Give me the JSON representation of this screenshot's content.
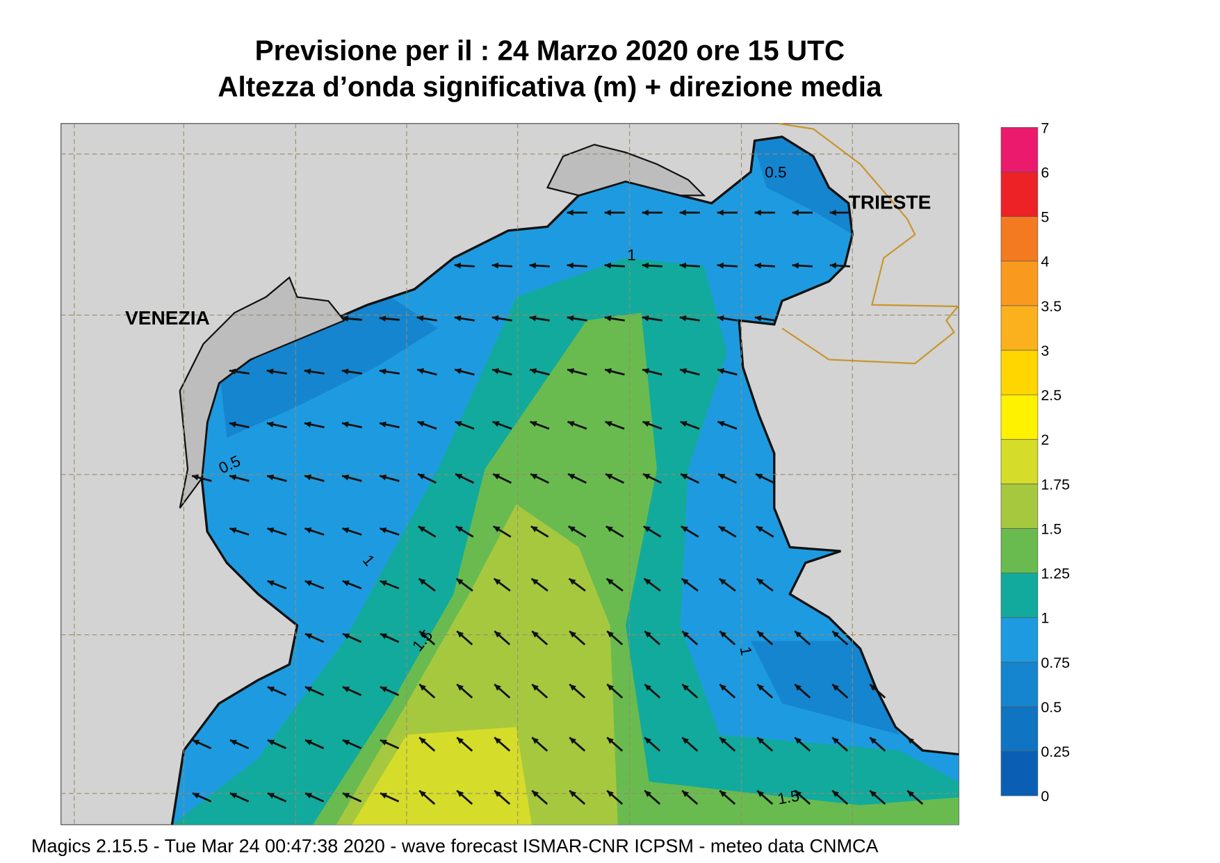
{
  "header": {
    "title": "Previsione per il  :  24   Marzo   2020   ore 15 UTC",
    "subtitle": "Altezza d’onda significativa (m) + direzione media"
  },
  "places": [
    "VENEZIA",
    "TRIESTE"
  ],
  "contour_labels": [
    "0.5",
    "0.5",
    "1",
    "1",
    "1.5",
    "1",
    "1.5"
  ],
  "legend": {
    "labels": [
      "0",
      "0.25",
      "0.5",
      "0.75",
      "1",
      "1.25",
      "1.5",
      "1.75",
      "2",
      "2.5",
      "3",
      "3.5",
      "4",
      "5",
      "6",
      "7"
    ],
    "colors": [
      "#0a5fb4",
      "#0f74c2",
      "#1685cf",
      "#1e9be0",
      "#12aa9c",
      "#69bb50",
      "#a6c83f",
      "#d5dc2a",
      "#fff200",
      "#ffd600",
      "#fbb11d",
      "#f99a1e",
      "#f37a20",
      "#ec2227",
      "#ec1a6c"
    ]
  },
  "footer": "Magics 2.15.5 - Tue Mar 24 00:47:38 2020 - wave forecast  ISMAR-CNR  ICPSM - meteo data   CNMCA"
}
